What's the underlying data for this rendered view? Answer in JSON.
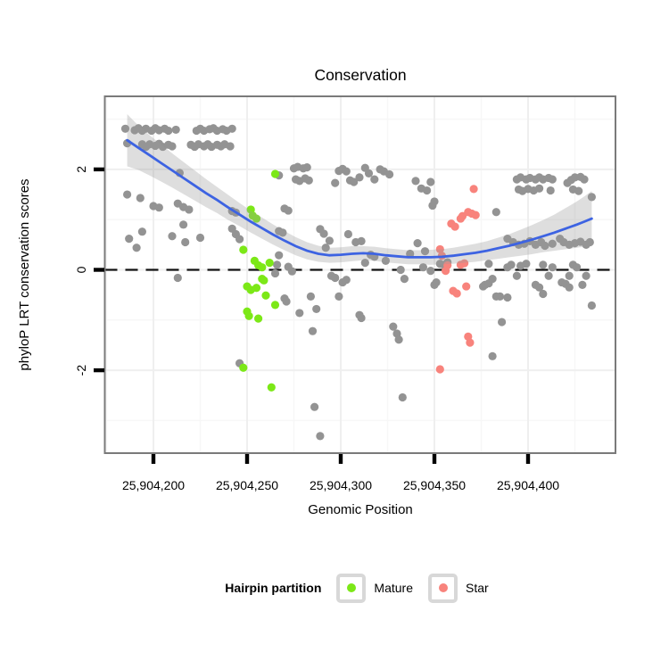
{
  "title": "Conservation",
  "x_axis": {
    "label": "Genomic Position",
    "ticks": [
      {
        "value": 25904200,
        "label": "25,904,200"
      },
      {
        "value": 25904250,
        "label": "25,904,250"
      },
      {
        "value": 25904300,
        "label": "25,904,300"
      },
      {
        "value": 25904350,
        "label": "25,904,350"
      },
      {
        "value": 25904400,
        "label": "25,904,400"
      }
    ]
  },
  "y_axis": {
    "label": "phyloP LRT conservation scores",
    "ticks": [
      {
        "value": 2,
        "label": "2"
      },
      {
        "value": 0,
        "label": "0"
      },
      {
        "value": -2,
        "label": "-2"
      }
    ]
  },
  "legend": {
    "title": "Hairpin partition",
    "items": [
      {
        "label": "Mature",
        "color": "#7CE817"
      },
      {
        "label": "Star",
        "color": "#F8837C"
      }
    ]
  },
  "colors": {
    "other_points": "#939393",
    "mature_points": "#7CE817",
    "star_points": "#F8837C",
    "smooth_line": "#3D63E2",
    "ci_band": "#9A9A9A",
    "dashed_line": "#111111",
    "panel_border": "#7A7A7A",
    "grid_major": "#EFEFEF",
    "grid_minor": "#F7F7F7",
    "legend_key_border": "#D8D8D8"
  },
  "chart_data": {
    "type": "scatter",
    "x_base": 25904000,
    "x_range": [
      174,
      447
    ],
    "y_range": [
      -3.55,
      3.45
    ],
    "reference_line_y": 0,
    "x_major_gridlines": [
      200,
      250,
      300,
      350,
      400
    ],
    "x_minor_gridlines": [
      175,
      225,
      275,
      325,
      375,
      425
    ],
    "y_major_gridlines": [
      -2,
      0,
      2
    ],
    "y_minor_gridlines": [
      -3,
      -1,
      1,
      3
    ],
    "series": [
      {
        "name": "Other",
        "points": [
          [
            185,
            2.81
          ],
          [
            190,
            2.78
          ],
          [
            192,
            2.82
          ],
          [
            194,
            2.77
          ],
          [
            196,
            2.81
          ],
          [
            199,
            2.77
          ],
          [
            201,
            2.82
          ],
          [
            203,
            2.78
          ],
          [
            206,
            2.81
          ],
          [
            208,
            2.77
          ],
          [
            212,
            2.79
          ],
          [
            223,
            2.77
          ],
          [
            225,
            2.81
          ],
          [
            227,
            2.77
          ],
          [
            230,
            2.8
          ],
          [
            232,
            2.82
          ],
          [
            234,
            2.77
          ],
          [
            237,
            2.8
          ],
          [
            239,
            2.77
          ],
          [
            242,
            2.81
          ],
          [
            186,
            2.52
          ],
          [
            194,
            2.5
          ],
          [
            196,
            2.45
          ],
          [
            198,
            2.5
          ],
          [
            201,
            2.47
          ],
          [
            203,
            2.51
          ],
          [
            205,
            2.45
          ],
          [
            208,
            2.49
          ],
          [
            210,
            2.46
          ],
          [
            220,
            2.49
          ],
          [
            222,
            2.45
          ],
          [
            224,
            2.5
          ],
          [
            227,
            2.46
          ],
          [
            229,
            2.5
          ],
          [
            231,
            2.45
          ],
          [
            234,
            2.49
          ],
          [
            236,
            2.46
          ],
          [
            238,
            2.5
          ],
          [
            241,
            2.46
          ],
          [
            275,
            2.02
          ],
          [
            277,
            2.05
          ],
          [
            280,
            2.02
          ],
          [
            282,
            2.04
          ],
          [
            276,
            1.8
          ],
          [
            278,
            1.77
          ],
          [
            281,
            1.82
          ],
          [
            283,
            1.78
          ],
          [
            267,
            1.88
          ],
          [
            297,
            1.73
          ],
          [
            299,
            1.97
          ],
          [
            301,
            2.01
          ],
          [
            303,
            1.96
          ],
          [
            305,
            1.78
          ],
          [
            307,
            1.75
          ],
          [
            310,
            1.84
          ],
          [
            313,
            2.03
          ],
          [
            315,
            1.92
          ],
          [
            318,
            1.8
          ],
          [
            321,
            2.0
          ],
          [
            323,
            1.96
          ],
          [
            326,
            1.9
          ],
          [
            340,
            1.77
          ],
          [
            343,
            1.62
          ],
          [
            346,
            1.58
          ],
          [
            348,
            1.75
          ],
          [
            350,
            1.36
          ],
          [
            349,
            1.28
          ],
          [
            383,
            1.15
          ],
          [
            394,
            1.8
          ],
          [
            396,
            1.84
          ],
          [
            399,
            1.8
          ],
          [
            401,
            1.83
          ],
          [
            404,
            1.8
          ],
          [
            406,
            1.84
          ],
          [
            408,
            1.8
          ],
          [
            411,
            1.83
          ],
          [
            413,
            1.8
          ],
          [
            395,
            1.6
          ],
          [
            397,
            1.57
          ],
          [
            400,
            1.61
          ],
          [
            403,
            1.58
          ],
          [
            406,
            1.62
          ],
          [
            412,
            1.58
          ],
          [
            421,
            1.73
          ],
          [
            423,
            1.79
          ],
          [
            425,
            1.84
          ],
          [
            428,
            1.85
          ],
          [
            430,
            1.8
          ],
          [
            424,
            1.6
          ],
          [
            427,
            1.57
          ],
          [
            434,
            1.45
          ],
          [
            186,
            1.5
          ],
          [
            193,
            1.43
          ],
          [
            200,
            1.27
          ],
          [
            203,
            1.24
          ],
          [
            214,
            1.93
          ],
          [
            213,
            1.32
          ],
          [
            216,
            1.25
          ],
          [
            219,
            1.2
          ],
          [
            242,
            1.17
          ],
          [
            244,
            1.14
          ],
          [
            270,
            1.22
          ],
          [
            272,
            1.18
          ],
          [
            187,
            0.62
          ],
          [
            191,
            0.44
          ],
          [
            194,
            0.76
          ],
          [
            210,
            0.67
          ],
          [
            216,
            0.9
          ],
          [
            217,
            0.55
          ],
          [
            225,
            0.64
          ],
          [
            242,
            0.82
          ],
          [
            244,
            0.71
          ],
          [
            246,
            0.61
          ],
          [
            267,
            0.77
          ],
          [
            269,
            0.74
          ],
          [
            267,
            0.29
          ],
          [
            213,
            -0.16
          ],
          [
            246,
            -1.86
          ],
          [
            265,
            -0.07
          ],
          [
            266,
            0.1
          ],
          [
            272,
            0.06
          ],
          [
            274,
            -0.03
          ],
          [
            270,
            -0.57
          ],
          [
            271,
            -0.63
          ],
          [
            278,
            -0.86
          ],
          [
            284,
            -0.53
          ],
          [
            285,
            -1.22
          ],
          [
            287,
            -0.78
          ],
          [
            286,
            -2.73
          ],
          [
            289,
            -3.31
          ],
          [
            289,
            0.81
          ],
          [
            291,
            0.72
          ],
          [
            294,
            0.58
          ],
          [
            292,
            0.44
          ],
          [
            295,
            -0.12
          ],
          [
            297,
            -0.16
          ],
          [
            299,
            -0.53
          ],
          [
            301,
            -0.25
          ],
          [
            303,
            -0.2
          ],
          [
            304,
            0.71
          ],
          [
            308,
            0.55
          ],
          [
            311,
            0.57
          ],
          [
            310,
            -0.9
          ],
          [
            311,
            -0.96
          ],
          [
            313,
            0.14
          ],
          [
            316,
            0.3
          ],
          [
            318,
            0.26
          ],
          [
            324,
            0.18
          ],
          [
            328,
            -1.13
          ],
          [
            330,
            -1.27
          ],
          [
            331,
            -1.39
          ],
          [
            332,
            0.0
          ],
          [
            333,
            -2.54
          ],
          [
            334,
            -0.18
          ],
          [
            337,
            0.32
          ],
          [
            341,
            0.53
          ],
          [
            345,
            0.37
          ],
          [
            344,
            0.05
          ],
          [
            348,
            -0.02
          ],
          [
            350,
            -0.3
          ],
          [
            351,
            -0.25
          ],
          [
            353,
            0.12
          ],
          [
            355,
            0.1
          ],
          [
            357,
            0.15
          ],
          [
            376,
            -0.33
          ],
          [
            377,
            -0.3
          ],
          [
            379,
            -0.27
          ],
          [
            379,
            0.12
          ],
          [
            381,
            -0.18
          ],
          [
            381,
            -1.72
          ],
          [
            383,
            -0.53
          ],
          [
            385,
            -0.53
          ],
          [
            386,
            -1.04
          ],
          [
            389,
            0.05
          ],
          [
            389,
            -0.55
          ],
          [
            391,
            0.1
          ],
          [
            394,
            -0.12
          ],
          [
            396,
            0.08
          ],
          [
            399,
            0.12
          ],
          [
            404,
            -0.3
          ],
          [
            406,
            -0.35
          ],
          [
            408,
            0.1
          ],
          [
            408,
            -0.48
          ],
          [
            411,
            -0.12
          ],
          [
            413,
            0.05
          ],
          [
            418,
            -0.25
          ],
          [
            420,
            -0.28
          ],
          [
            422,
            -0.12
          ],
          [
            422,
            -0.35
          ],
          [
            424,
            0.1
          ],
          [
            426,
            0.05
          ],
          [
            429,
            -0.3
          ],
          [
            431,
            -0.12
          ],
          [
            434,
            -0.71
          ],
          [
            389,
            0.62
          ],
          [
            392,
            0.55
          ],
          [
            395,
            0.5
          ],
          [
            398,
            0.52
          ],
          [
            401,
            0.57
          ],
          [
            404,
            0.5
          ],
          [
            407,
            0.55
          ],
          [
            409,
            0.48
          ],
          [
            413,
            0.52
          ],
          [
            417,
            0.62
          ],
          [
            419,
            0.55
          ],
          [
            422,
            0.5
          ],
          [
            425,
            0.53
          ],
          [
            428,
            0.56
          ],
          [
            431,
            0.5
          ],
          [
            433,
            0.55
          ]
        ]
      },
      {
        "name": "Mature",
        "points": [
          [
            265,
            1.91
          ],
          [
            252,
            1.2
          ],
          [
            253,
            1.08
          ],
          [
            255,
            1.02
          ],
          [
            248,
            0.4
          ],
          [
            254,
            0.18
          ],
          [
            256,
            0.09
          ],
          [
            258,
            0.05
          ],
          [
            262,
            0.14
          ],
          [
            258,
            -0.18
          ],
          [
            250,
            -0.33
          ],
          [
            255,
            -0.36
          ],
          [
            252,
            -0.4
          ],
          [
            259,
            -0.21
          ],
          [
            260,
            -0.51
          ],
          [
            265,
            -0.7
          ],
          [
            250,
            -0.83
          ],
          [
            251,
            -0.92
          ],
          [
            256,
            -0.97
          ],
          [
            248,
            -1.95
          ],
          [
            263,
            -2.34
          ]
        ]
      },
      {
        "name": "Star",
        "points": [
          [
            371,
            1.61
          ],
          [
            359,
            0.92
          ],
          [
            361,
            0.86
          ],
          [
            364,
            1.02
          ],
          [
            365,
            1.07
          ],
          [
            368,
            1.15
          ],
          [
            370,
            1.12
          ],
          [
            372,
            1.09
          ],
          [
            353,
            0.41
          ],
          [
            354,
            0.28
          ],
          [
            357,
            0.09
          ],
          [
            364,
            0.1
          ],
          [
            366,
            0.13
          ],
          [
            356,
            -0.02
          ],
          [
            360,
            -0.42
          ],
          [
            362,
            -0.47
          ],
          [
            367,
            -0.33
          ],
          [
            368,
            -1.33
          ],
          [
            369,
            -1.45
          ],
          [
            353,
            -1.98
          ]
        ]
      }
    ],
    "smooth": {
      "name": "loess fit with confidence band",
      "points": [
        [
          186,
          2.58,
          0.52
        ],
        [
          192,
          2.43,
          0.44
        ],
        [
          198,
          2.28,
          0.4
        ],
        [
          204,
          2.13,
          0.37
        ],
        [
          210,
          1.98,
          0.34
        ],
        [
          216,
          1.83,
          0.32
        ],
        [
          222,
          1.68,
          0.3
        ],
        [
          228,
          1.53,
          0.28
        ],
        [
          234,
          1.39,
          0.26
        ],
        [
          240,
          1.24,
          0.25
        ],
        [
          246,
          1.1,
          0.23
        ],
        [
          252,
          0.96,
          0.22
        ],
        [
          258,
          0.83,
          0.21
        ],
        [
          264,
          0.7,
          0.2
        ],
        [
          270,
          0.58,
          0.19
        ],
        [
          276,
          0.47,
          0.18
        ],
        [
          282,
          0.38,
          0.17
        ],
        [
          288,
          0.32,
          0.16
        ],
        [
          294,
          0.29,
          0.15
        ],
        [
          300,
          0.3,
          0.15
        ],
        [
          306,
          0.32,
          0.15
        ],
        [
          312,
          0.33,
          0.14
        ],
        [
          318,
          0.32,
          0.14
        ],
        [
          324,
          0.29,
          0.14
        ],
        [
          330,
          0.27,
          0.14
        ],
        [
          336,
          0.25,
          0.14
        ],
        [
          342,
          0.25,
          0.14
        ],
        [
          348,
          0.25,
          0.15
        ],
        [
          354,
          0.26,
          0.15
        ],
        [
          360,
          0.28,
          0.16
        ],
        [
          366,
          0.31,
          0.17
        ],
        [
          372,
          0.34,
          0.18
        ],
        [
          378,
          0.38,
          0.19
        ],
        [
          384,
          0.43,
          0.21
        ],
        [
          390,
          0.48,
          0.23
        ],
        [
          396,
          0.54,
          0.26
        ],
        [
          402,
          0.6,
          0.29
        ],
        [
          408,
          0.67,
          0.32
        ],
        [
          414,
          0.74,
          0.36
        ],
        [
          420,
          0.82,
          0.41
        ],
        [
          426,
          0.9,
          0.46
        ],
        [
          430,
          0.96,
          0.5
        ],
        [
          434,
          1.02,
          0.55
        ]
      ]
    }
  }
}
